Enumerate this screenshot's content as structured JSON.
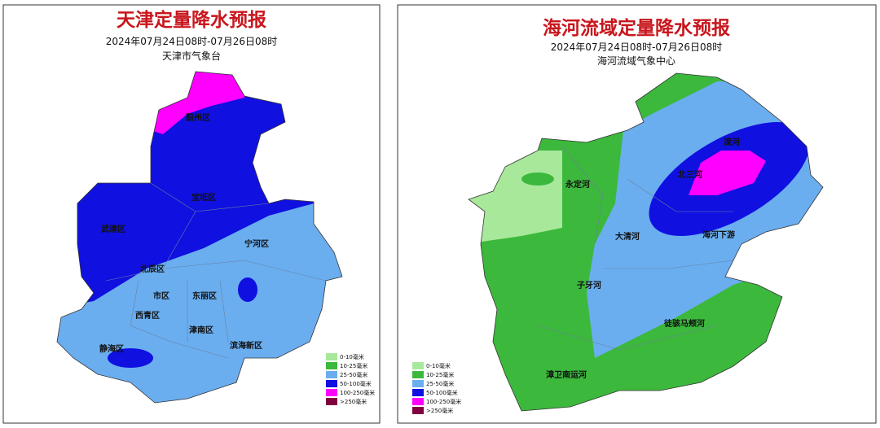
{
  "panels": [
    {
      "title": "天津定量降水预报",
      "period": "2024年07月24日08时-07月26日08时",
      "issuer": "天津市气象台",
      "labels": [
        "蓟州区",
        "宝坻区",
        "武清区",
        "北辰区",
        "宁河区",
        "市区",
        "东丽区",
        "西青区",
        "津南区",
        "静海区",
        "滨海新区"
      ],
      "legend": [
        {
          "label": "0-10毫米",
          "color": "#a8e89a"
        },
        {
          "label": "10-25毫米",
          "color": "#3cb83c"
        },
        {
          "label": "25-50毫米",
          "color": "#6aaef0"
        },
        {
          "label": "50-100毫米",
          "color": "#1010e0"
        },
        {
          "label": "100-250毫米",
          "color": "#ff00ff"
        },
        {
          "label": ">250毫米",
          "color": "#800040"
        }
      ]
    },
    {
      "title": "海河流域定量降水预报",
      "period": "2024年07月24日08时-07月26日08时",
      "issuer": "海河流域气象中心",
      "labels": [
        "永定河",
        "大清河",
        "子牙河",
        "海河下游",
        "徒骇马颊河",
        "漳卫南运河",
        "滦河",
        "北三河"
      ],
      "legend": [
        {
          "label": "0-10毫米",
          "color": "#a8e89a"
        },
        {
          "label": "10-25毫米",
          "color": "#3cb83c"
        },
        {
          "label": "25-50毫米",
          "color": "#6aaef0"
        },
        {
          "label": "50-100毫米",
          "color": "#1010e0"
        },
        {
          "label": "100-250毫米",
          "color": "#ff00ff"
        },
        {
          "label": ">250毫米",
          "color": "#800040"
        }
      ]
    }
  ]
}
